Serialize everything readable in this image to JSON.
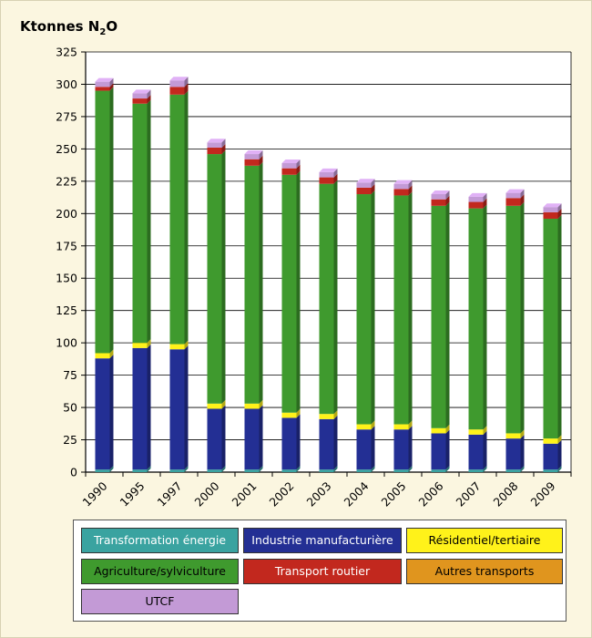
{
  "unit_title": {
    "main": "Ktonnes N",
    "sub": "2",
    "tail": "O"
  },
  "colors": {
    "transformation_energie": "#3aa3a0",
    "industrie_manufacturiere": "#232f94",
    "residentiel_tertiaire": "#fff21a",
    "agriculture_sylviculture": "#3f9a2e",
    "transport_routier": "#c2281e",
    "autres_transports": "#e0951e",
    "utcf": "#c39ad6"
  },
  "legend": [
    {
      "label": "Transformation énergie",
      "color": "#3aa3a0",
      "text_color": "#ffffff"
    },
    {
      "label": "Industrie manufacturière",
      "color": "#232f94",
      "text_color": "#ffffff"
    },
    {
      "label": "Résidentiel/tertiaire",
      "color": "#fff21a",
      "text_color": "#000000"
    },
    {
      "label": "Agriculture/sylviculture",
      "color": "#3f9a2e",
      "text_color": "#000000"
    },
    {
      "label": "Transport routier",
      "color": "#c2281e",
      "text_color": "#ffffff"
    },
    {
      "label": "Autres transports",
      "color": "#e0951e",
      "text_color": "#000000"
    },
    {
      "label": "UTCF",
      "color": "#c39ad6",
      "text_color": "#000000"
    }
  ],
  "chart_data": {
    "type": "bar",
    "stacked": true,
    "grid": true,
    "ylim": [
      0,
      325
    ],
    "yticks": [
      0,
      25,
      50,
      75,
      100,
      125,
      150,
      175,
      200,
      225,
      250,
      275,
      300,
      325
    ],
    "categories": [
      "1990",
      "1995",
      "1997",
      "2000",
      "2001",
      "2002",
      "2003",
      "2004",
      "2005",
      "2006",
      "2007",
      "2008",
      "2009"
    ],
    "series": [
      {
        "name": "Transformation énergie",
        "color": "#3aa3a0",
        "values": [
          2,
          2,
          2,
          2,
          2,
          2,
          2,
          2,
          2,
          2,
          2,
          2,
          2
        ]
      },
      {
        "name": "Industrie manufacturière",
        "color": "#232f94",
        "values": [
          86,
          94,
          93,
          47,
          47,
          40,
          39,
          31,
          31,
          28,
          27,
          24,
          20
        ]
      },
      {
        "name": "Résidentiel/tertiaire",
        "color": "#fff21a",
        "values": [
          4,
          4,
          4,
          4,
          4,
          4,
          4,
          4,
          4,
          4,
          4,
          4,
          4
        ]
      },
      {
        "name": "Agriculture/sylviculture",
        "color": "#3f9a2e",
        "values": [
          203,
          185,
          193,
          193,
          184,
          184,
          178,
          178,
          177,
          172,
          171,
          176,
          170
        ]
      },
      {
        "name": "Transport routier",
        "color": "#c2281e",
        "values": [
          3,
          4,
          6,
          5,
          5,
          5,
          5,
          5,
          5,
          5,
          5,
          6,
          5
        ]
      },
      {
        "name": "Autres transports",
        "color": "#e0951e",
        "values": [
          0,
          0,
          0,
          0,
          0,
          0,
          0,
          0,
          0,
          0,
          0,
          0,
          0
        ]
      },
      {
        "name": "UTCF",
        "color": "#c39ad6",
        "values": [
          4,
          4,
          5,
          4,
          4,
          4,
          4,
          4,
          4,
          4,
          4,
          4,
          4
        ]
      }
    ]
  }
}
